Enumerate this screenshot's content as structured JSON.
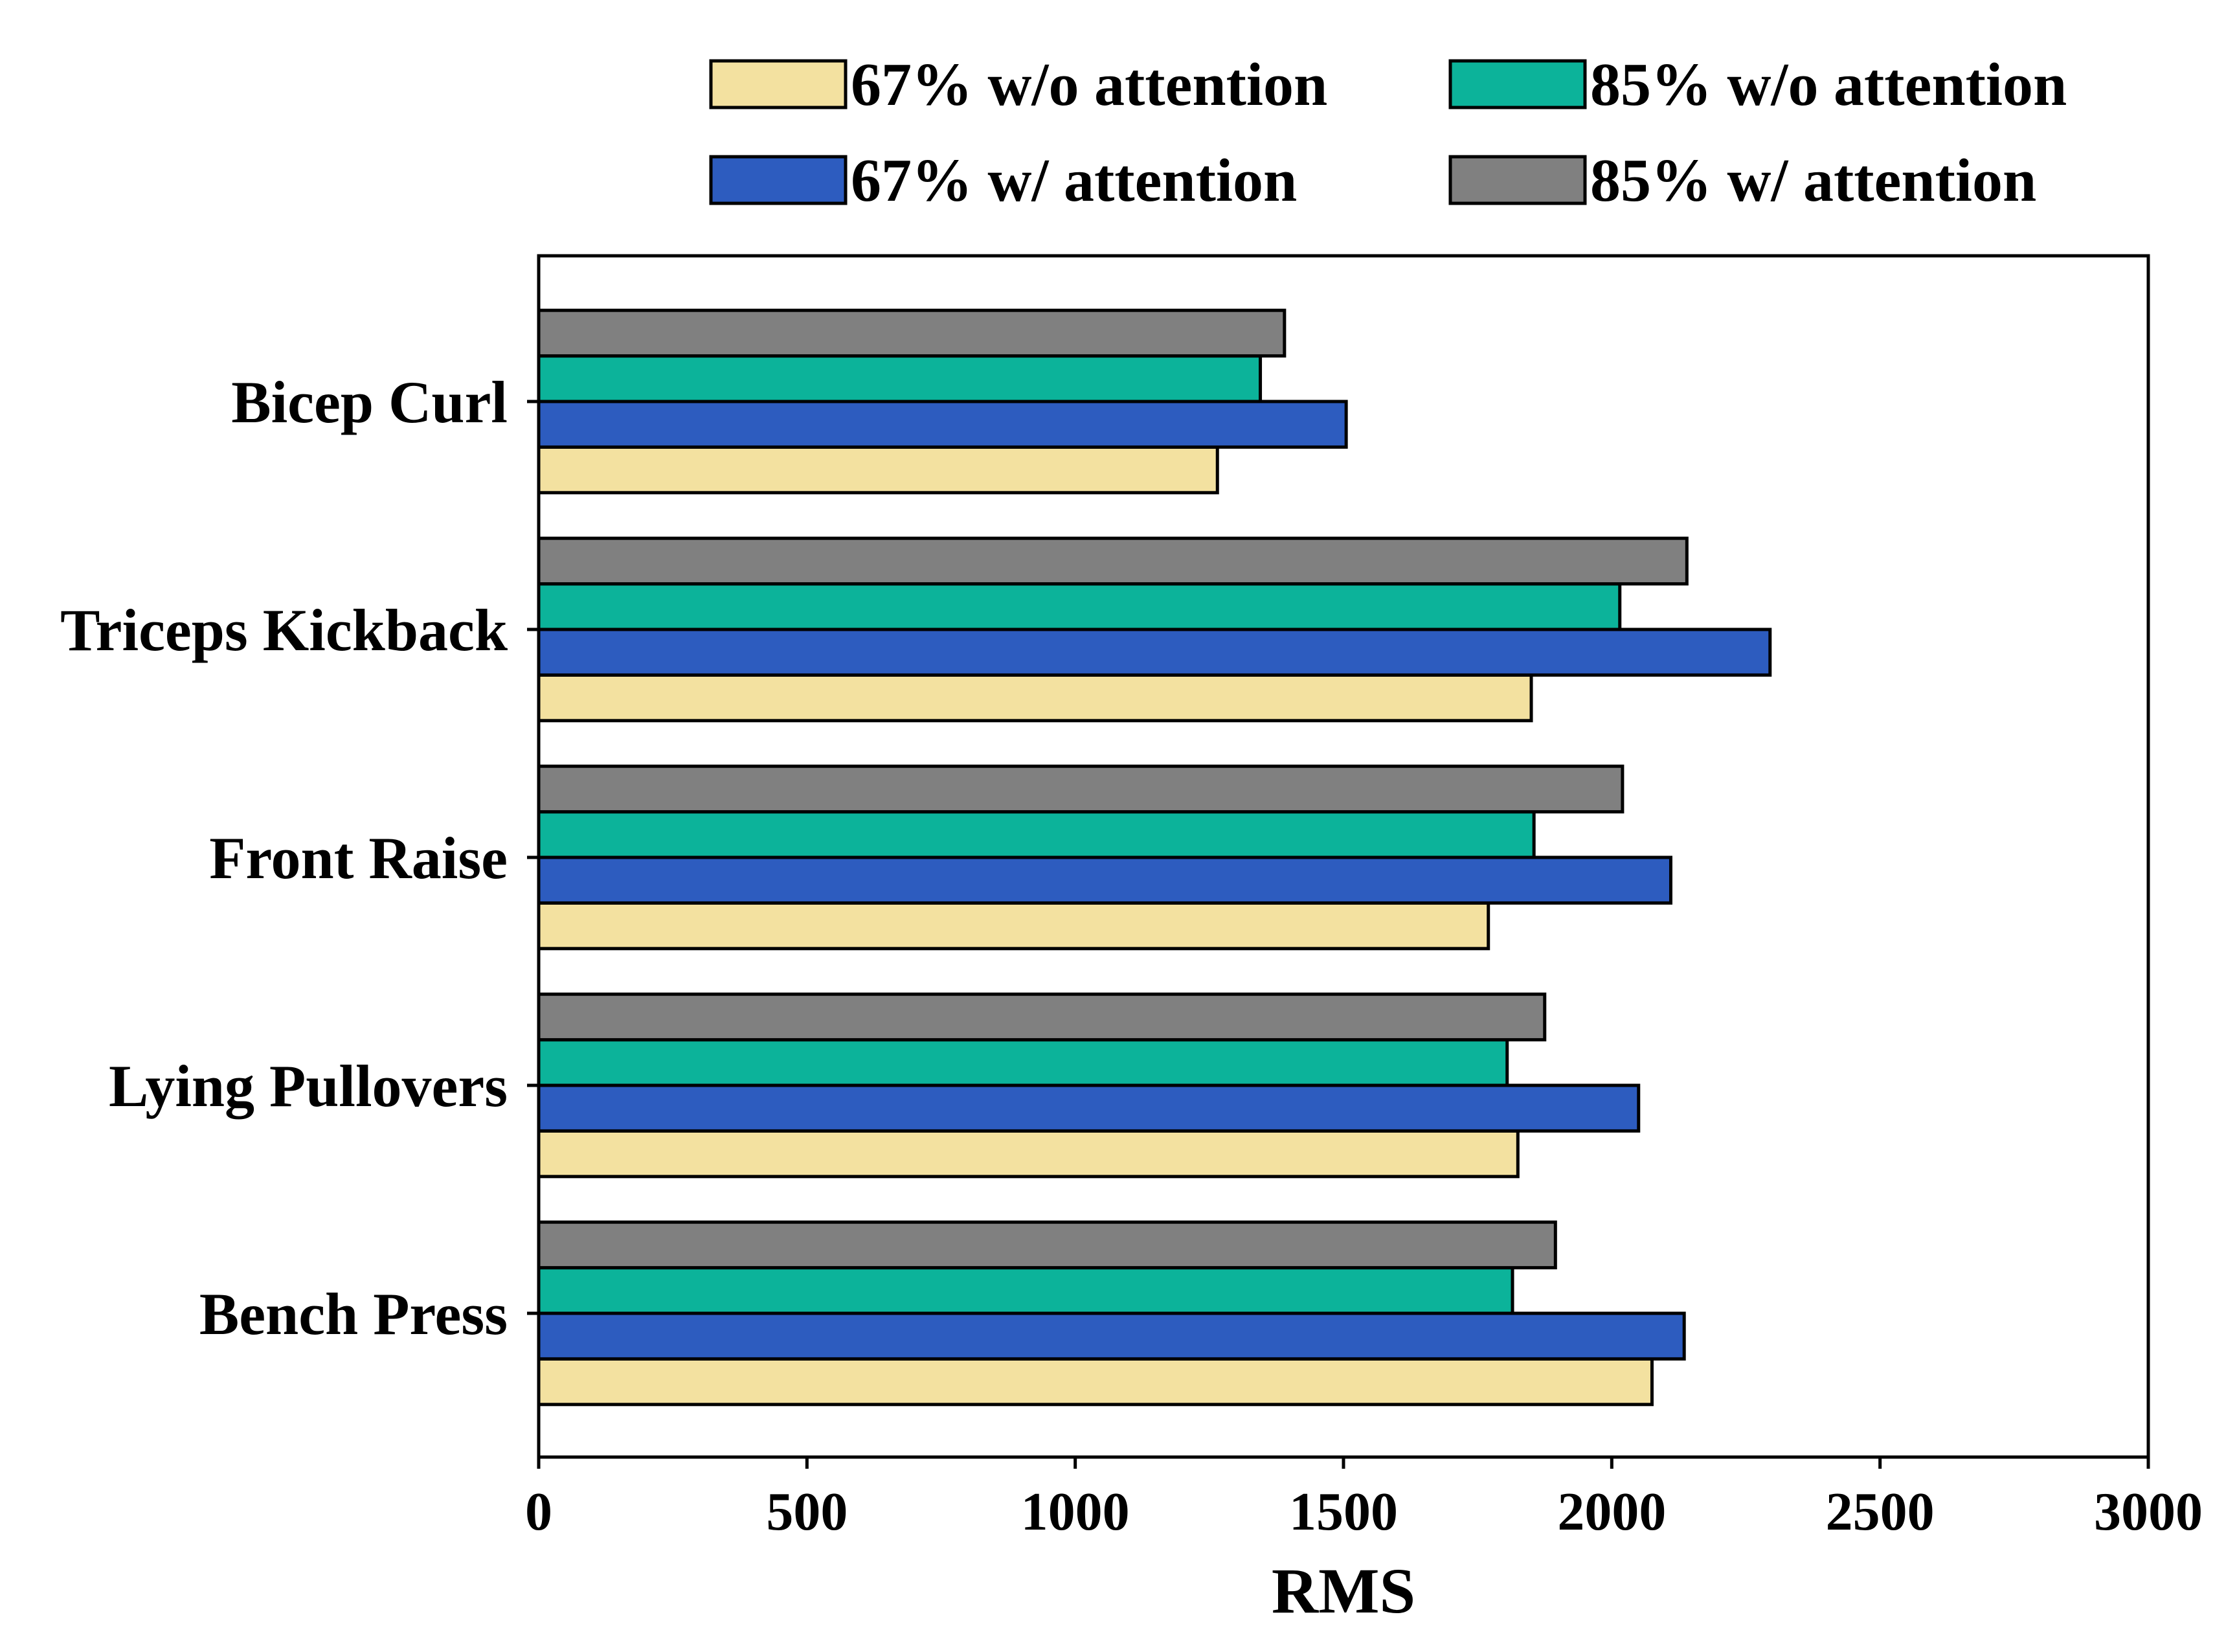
{
  "chart_data": {
    "type": "bar",
    "orientation": "horizontal",
    "categories": [
      "Bicep Curl",
      "Triceps Kickback",
      "Front Raise",
      "Lying Pullovers",
      "Bench Press"
    ],
    "series": [
      {
        "name": "67% w/o attention",
        "color": "#F3E1A0",
        "values": [
          1265,
          1850,
          1770,
          1825,
          2075
        ]
      },
      {
        "name": "67% w/ attention",
        "color": "#2D5CBF",
        "values": [
          1505,
          2295,
          2110,
          2050,
          2135
        ]
      },
      {
        "name": "85% w/o attention",
        "color": "#0CB39A",
        "values": [
          1345,
          2015,
          1855,
          1805,
          1815
        ]
      },
      {
        "name": "85% w/ attention",
        "color": "#808080",
        "values": [
          1390,
          2140,
          2020,
          1875,
          1895
        ]
      }
    ],
    "title": "",
    "xlabel": "RMS",
    "ylabel": "",
    "xlim": [
      0,
      3000
    ],
    "xticks": [
      "0",
      "500",
      "1000",
      "1500",
      "2000",
      "2500",
      "3000"
    ],
    "grid": false,
    "legend_position": "top"
  }
}
